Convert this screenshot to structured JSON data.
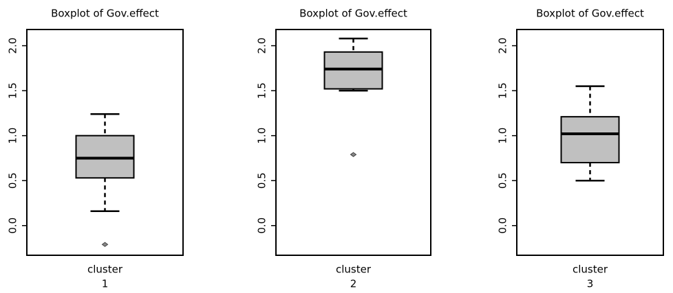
{
  "chart_data": [
    {
      "type": "box",
      "title": "Boxplot of Gov.effect",
      "xlabel": "cluster",
      "categories": [
        "1"
      ],
      "boxes": [
        {
          "min": 0.16,
          "q1": 0.53,
          "median": 0.75,
          "q3": 1.0,
          "max": 1.24,
          "outliers": [
            -0.21
          ]
        }
      ],
      "ylim": [
        -0.33,
        2.18
      ],
      "yticks": [
        {
          "value": 0,
          "label": "0.0"
        },
        {
          "value": 0.5,
          "label": "0.5"
        },
        {
          "value": 1,
          "label": "1.0"
        },
        {
          "value": 1.5,
          "label": "1.5"
        },
        {
          "value": 2,
          "label": "2.0"
        }
      ],
      "color": "#c0c0c0"
    },
    {
      "type": "box",
      "title": "Boxplot of Gov.effect",
      "xlabel": "cluster",
      "categories": [
        "2"
      ],
      "boxes": [
        {
          "min": 1.5,
          "q1": 1.52,
          "median": 1.74,
          "q3": 1.93,
          "max": 2.08,
          "outliers": [
            0.79
          ]
        }
      ],
      "ylim": [
        -0.33,
        2.18
      ],
      "yticks": [
        {
          "value": 0,
          "label": "0.0"
        },
        {
          "value": 0.5,
          "label": "0.5"
        },
        {
          "value": 1,
          "label": "1.0"
        },
        {
          "value": 1.5,
          "label": "1.5"
        },
        {
          "value": 2,
          "label": "2.0"
        }
      ],
      "color": "#c0c0c0"
    },
    {
      "type": "box",
      "title": "Boxplot of Gov.effect",
      "xlabel": "cluster",
      "categories": [
        "3"
      ],
      "boxes": [
        {
          "min": 0.5,
          "q1": 0.7,
          "median": 1.02,
          "q3": 1.21,
          "max": 1.55,
          "outliers": []
        }
      ],
      "ylim": [
        -0.33,
        2.18
      ],
      "yticks": [
        {
          "value": 0,
          "label": "0.0"
        },
        {
          "value": 0.5,
          "label": "0.5"
        },
        {
          "value": 1,
          "label": "1.0"
        },
        {
          "value": 1.5,
          "label": "1.5"
        },
        {
          "value": 2,
          "label": "2.0"
        }
      ],
      "color": "#c0c0c0"
    }
  ]
}
